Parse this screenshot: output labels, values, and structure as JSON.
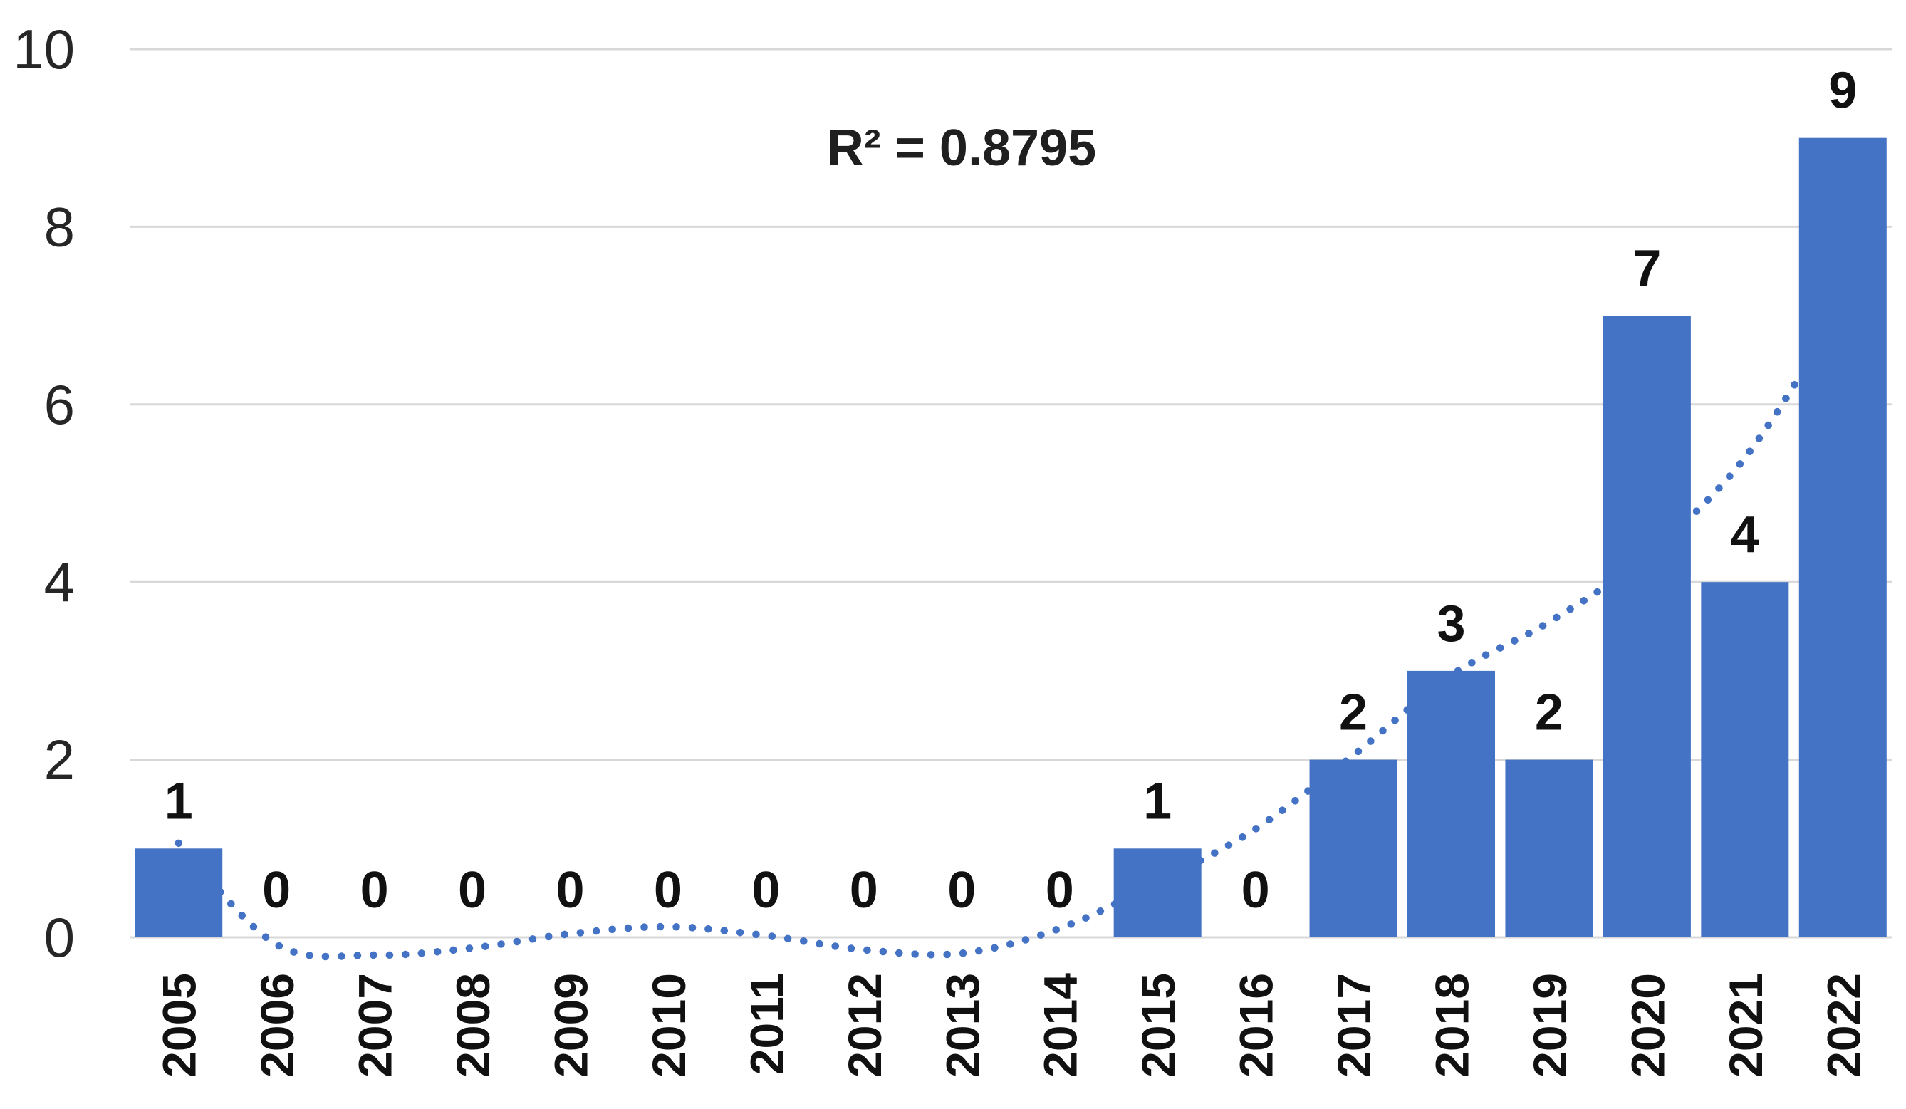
{
  "chart_data": {
    "type": "bar",
    "title": "",
    "xlabel": "",
    "ylabel": "",
    "categories": [
      "2005",
      "2006",
      "2007",
      "2008",
      "2009",
      "2010",
      "2011",
      "2012",
      "2013",
      "2014",
      "2015",
      "2016",
      "2017",
      "2018",
      "2019",
      "2020",
      "2021",
      "2022"
    ],
    "values": [
      1,
      0,
      0,
      0,
      0,
      0,
      0,
      0,
      0,
      0,
      1,
      0,
      2,
      3,
      2,
      7,
      4,
      9
    ],
    "data_labels": [
      "1",
      "0",
      "0",
      "0",
      "0",
      "0",
      "0",
      "0",
      "0",
      "0",
      "1",
      "0",
      "2",
      "3",
      "2",
      "7",
      "4",
      "9"
    ],
    "annotation": "R² = 0.8795",
    "r_squared": 0.8795,
    "ylim": [
      0,
      10
    ],
    "y_ticks": [
      0,
      2,
      4,
      6,
      8,
      10
    ],
    "grid": true,
    "legend": false,
    "trendline": {
      "style": "dotted",
      "points": [
        1.06,
        -0.08,
        -0.2,
        -0.12,
        0.04,
        0.12,
        0.02,
        -0.14,
        -0.18,
        0.1,
        0.62,
        1.22,
        2.05,
        2.95,
        3.55,
        4.3,
        5.4,
        7.1
      ]
    },
    "colors": {
      "bar": "#4472C4",
      "trendline": "#4472C4",
      "gridline": "#D8D8D8",
      "text": "#1f1f1f"
    }
  }
}
